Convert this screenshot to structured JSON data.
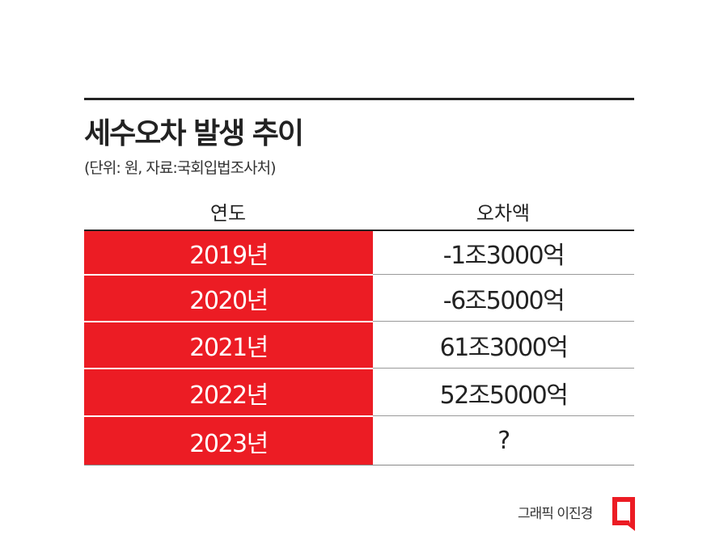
{
  "header": {
    "title": "세수오차 발생 추이",
    "subtitle": "(단위: 원, 자료:국회입법조사처)"
  },
  "table": {
    "columns": [
      "연도",
      "오차액"
    ],
    "rows": [
      [
        "2019년",
        "-1조3000억"
      ],
      [
        "2020년",
        "-6조5000억"
      ],
      [
        "2021년",
        "61조3000억"
      ],
      [
        "2022년",
        "52조5000억"
      ],
      [
        "2023년",
        "?"
      ]
    ]
  },
  "footer": {
    "credit": "그래픽 이진경"
  }
}
